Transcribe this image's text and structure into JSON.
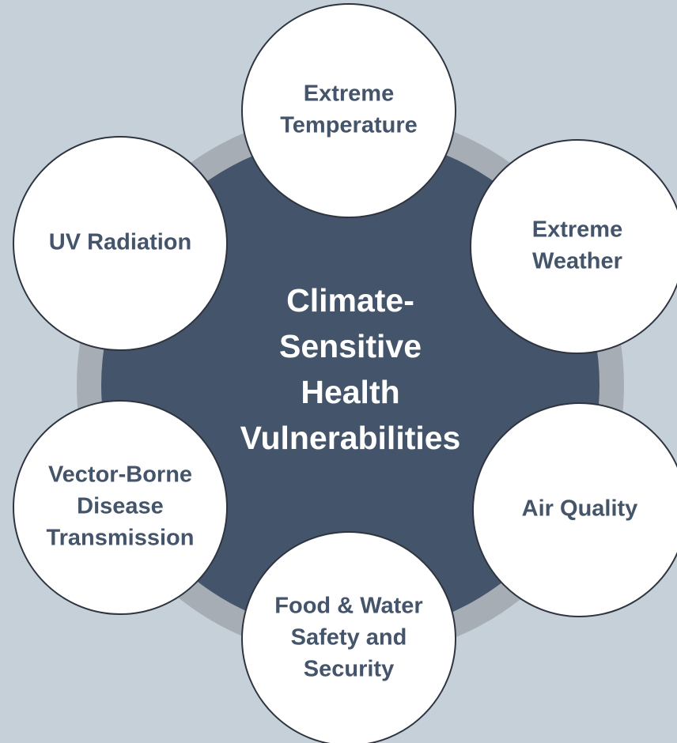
{
  "center": {
    "lines": [
      "Climate-",
      "Sensitive",
      "Health",
      "Vulnerabilities"
    ]
  },
  "nodes": [
    {
      "lines": [
        "Extreme",
        "Temperature"
      ]
    },
    {
      "lines": [
        "Extreme",
        "Weather"
      ]
    },
    {
      "lines": [
        "Air Quality"
      ]
    },
    {
      "lines": [
        "Food & Water",
        "Safety and",
        "Security"
      ]
    },
    {
      "lines": [
        "Vector-Borne",
        "Disease",
        "Transmission"
      ]
    },
    {
      "lines": [
        "UV Radiation"
      ]
    }
  ]
}
